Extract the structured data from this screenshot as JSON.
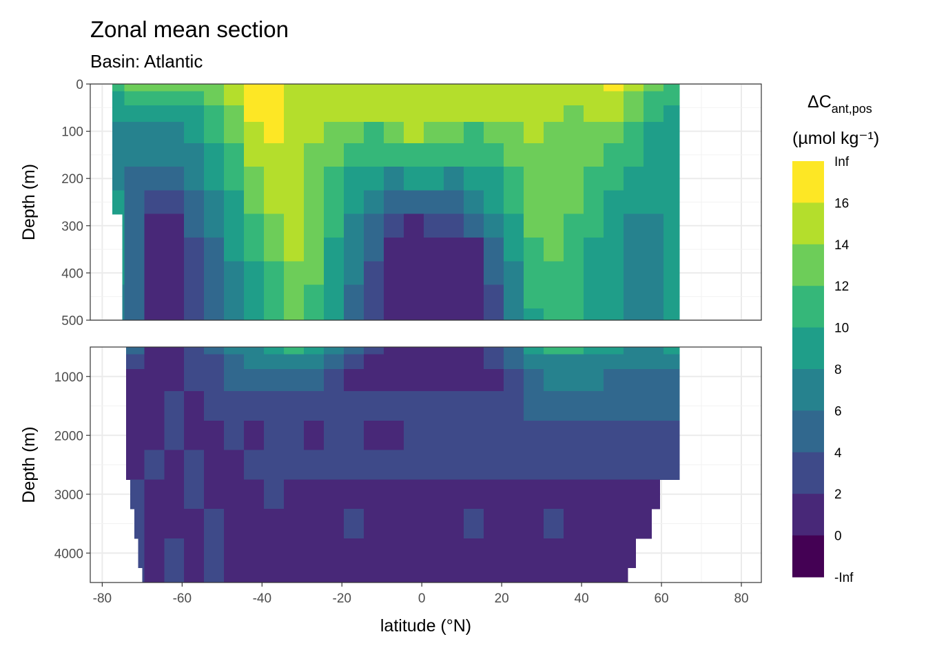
{
  "title": "Zonal mean section",
  "subtitle": "Basin: Atlantic",
  "chart_data": {
    "type": "heatmap",
    "title": "Zonal mean section",
    "subtitle": "Basin: Atlantic",
    "xlabel": "latitude (°N)",
    "ylabel": "Depth (m)",
    "xlim": [
      -83,
      85
    ],
    "x_ticks": [
      -80,
      -60,
      -40,
      -20,
      0,
      20,
      40,
      60,
      80
    ],
    "x_tick_labels": [
      "-80",
      "-60",
      "-40",
      "-20",
      "0",
      "20",
      "40",
      "60",
      "80"
    ],
    "data_lat_range": [
      -77.5,
      64.5
    ],
    "panels": [
      {
        "name": "upper",
        "ylim": [
          0,
          500
        ],
        "y_ticks": [
          0,
          100,
          200,
          300,
          400,
          500
        ],
        "y_tick_labels": [
          "0",
          "100",
          "200",
          "300",
          "400",
          "500"
        ],
        "x": [
          -77,
          -72,
          -67,
          -62,
          -57,
          -52,
          -47,
          -42,
          -37,
          -32,
          -27,
          -22,
          -17,
          -12,
          -7,
          -2,
          3,
          8,
          13,
          18,
          23,
          28,
          33,
          38,
          43,
          48,
          53,
          58,
          63
        ],
        "depth": [
          0,
          30,
          60,
          100,
          150,
          200,
          250,
          300,
          350,
          400,
          450,
          500
        ],
        "values": [
          [
            10,
            12,
            13,
            13,
            12,
            13,
            15,
            17,
            17,
            15,
            15,
            15,
            15,
            15,
            15,
            15,
            15,
            15,
            15,
            15,
            15,
            15,
            15,
            15,
            15,
            17,
            14,
            12,
            11
          ],
          [
            9,
            11,
            11,
            11,
            11,
            12,
            14,
            17,
            17,
            15,
            15,
            15,
            15,
            15,
            15,
            15,
            15,
            15,
            15,
            15,
            15,
            15,
            14,
            14,
            15,
            15,
            13,
            11,
            10
          ],
          [
            8,
            9,
            9,
            9,
            9,
            11,
            13,
            16,
            17,
            15,
            14,
            15,
            15,
            15,
            15,
            15,
            15,
            15,
            15,
            14,
            14,
            14,
            14,
            13,
            14,
            14,
            12,
            10,
            9
          ],
          [
            7,
            7,
            7,
            7,
            8,
            10,
            12,
            15,
            16,
            15,
            14,
            13,
            12,
            11,
            13,
            14,
            13,
            12,
            11,
            12,
            13,
            14,
            13,
            13,
            13,
            12,
            11,
            9,
            9
          ],
          [
            7,
            6,
            6,
            6,
            7,
            9,
            11,
            14,
            15,
            15,
            13,
            12,
            11,
            10,
            10,
            11,
            10,
            10,
            10,
            11,
            12,
            13,
            13,
            13,
            12,
            11,
            10,
            9,
            9
          ],
          [
            7,
            5,
            4,
            4,
            6,
            8,
            10,
            13,
            15,
            15,
            13,
            11,
            9,
            8,
            7,
            8,
            8,
            7,
            8,
            9,
            11,
            13,
            13,
            12,
            11,
            10,
            9,
            8,
            9
          ],
          [
            8,
            5,
            3,
            3,
            5,
            7,
            9,
            12,
            14,
            15,
            13,
            10,
            8,
            6,
            5,
            5,
            5,
            5,
            6,
            8,
            10,
            12,
            13,
            12,
            10,
            9,
            8,
            8,
            9
          ],
          [
            8,
            5,
            1,
            1,
            4,
            6,
            8,
            11,
            13,
            14,
            12,
            10,
            7,
            5,
            3,
            1,
            3,
            3,
            4,
            6,
            9,
            12,
            12,
            11,
            10,
            8,
            7,
            7,
            8
          ],
          [
            8,
            5,
            1,
            1,
            3,
            5,
            8,
            10,
            12,
            14,
            12,
            9,
            6,
            4,
            1,
            1,
            1,
            1,
            1,
            5,
            8,
            11,
            12,
            11,
            9,
            8,
            7,
            7,
            8
          ],
          [
            8,
            4,
            1,
            1,
            3,
            5,
            7,
            9,
            11,
            13,
            12,
            9,
            6,
            3,
            1,
            1,
            1,
            1,
            1,
            4,
            7,
            10,
            11,
            10,
            9,
            8,
            7,
            7,
            8
          ],
          [
            7,
            4,
            1,
            1,
            3,
            5,
            7,
            9,
            11,
            12,
            11,
            9,
            5,
            3,
            1,
            1,
            1,
            1,
            1,
            3,
            6,
            10,
            11,
            10,
            9,
            8,
            7,
            7,
            8
          ],
          [
            7,
            4,
            1,
            1,
            3,
            4,
            6,
            8,
            10,
            12,
            11,
            8,
            5,
            3,
            1,
            1,
            1,
            1,
            1,
            2,
            6,
            9,
            11,
            10,
            9,
            8,
            7,
            7,
            8
          ]
        ]
      },
      {
        "name": "lower",
        "ylim": [
          500,
          4500
        ],
        "y_ticks": [
          1000,
          2000,
          3000,
          4000
        ],
        "y_tick_labels": [
          "1000",
          "2000",
          "3000",
          "4000"
        ],
        "x": [
          -77,
          -72,
          -67,
          -62,
          -57,
          -52,
          -47,
          -42,
          -37,
          -32,
          -27,
          -22,
          -17,
          -12,
          -7,
          -2,
          3,
          8,
          13,
          18,
          23,
          28,
          33,
          38,
          43,
          48,
          53,
          58,
          63
        ],
        "depth": [
          500,
          750,
          1000,
          1500,
          2000,
          2500,
          3000,
          3500,
          4000,
          4500
        ],
        "values": [
          [
            7,
            4,
            1,
            1,
            3,
            4,
            6,
            7,
            9,
            10,
            9,
            7,
            5,
            3,
            1,
            1,
            1,
            1,
            1,
            2,
            5,
            8,
            10,
            10,
            9,
            8,
            7,
            7,
            8
          ],
          [
            5,
            2,
            1,
            1,
            3,
            3,
            5,
            6,
            7,
            7,
            6,
            5,
            3,
            1,
            1,
            1,
            1,
            1,
            1,
            2,
            4,
            6,
            7,
            7,
            7,
            6,
            6,
            6,
            6
          ],
          [
            3,
            1,
            1,
            1,
            3,
            3,
            4,
            5,
            5,
            5,
            5,
            3,
            1,
            1,
            1,
            1,
            1,
            1,
            1,
            1,
            3,
            5,
            6,
            6,
            6,
            5,
            5,
            5,
            5
          ],
          [
            2,
            1,
            1,
            3,
            1,
            3,
            3,
            3,
            3,
            3,
            3,
            3,
            3,
            3,
            3,
            3,
            3,
            3,
            3,
            3,
            3,
            4,
            5,
            5,
            5,
            5,
            5,
            5,
            5
          ],
          [
            2,
            1,
            1,
            3,
            1,
            1,
            3,
            1,
            3,
            3,
            1,
            3,
            3,
            1,
            1,
            3,
            3,
            3,
            3,
            3,
            3,
            3,
            3,
            3,
            3,
            3,
            3,
            3,
            3
          ],
          [
            2,
            1,
            3,
            1,
            3,
            1,
            1,
            3,
            3,
            3,
            3,
            3,
            3,
            3,
            3,
            3,
            3,
            3,
            3,
            3,
            3,
            3,
            3,
            3,
            3,
            3,
            3,
            3,
            3
          ],
          [
            2,
            3,
            1,
            1,
            3,
            1,
            1,
            1,
            3,
            1,
            1,
            1,
            1,
            1,
            1,
            1,
            1,
            1,
            1,
            1,
            1,
            1,
            1,
            1,
            1,
            1,
            1,
            1,
            1
          ],
          [
            1,
            3,
            1,
            1,
            1,
            3,
            1,
            1,
            1,
            1,
            1,
            1,
            3,
            1,
            1,
            1,
            1,
            1,
            3,
            1,
            1,
            1,
            3,
            1,
            1,
            1,
            1,
            1,
            1
          ],
          [
            1,
            3,
            1,
            3,
            1,
            3,
            1,
            1,
            1,
            1,
            1,
            1,
            1,
            1,
            1,
            1,
            1,
            1,
            1,
            1,
            1,
            1,
            1,
            1,
            1,
            1,
            1,
            1,
            1
          ],
          [
            1,
            3,
            1,
            3,
            1,
            3,
            1,
            1,
            1,
            1,
            1,
            1,
            1,
            1,
            1,
            1,
            1,
            1,
            1,
            1,
            1,
            1,
            1,
            1,
            1,
            1,
            1,
            1,
            1
          ]
        ]
      }
    ],
    "bottom_edge_lat": [
      [
        500,
        -74
      ],
      [
        1000,
        -74
      ],
      [
        1500,
        -74
      ],
      [
        2500,
        -74
      ],
      [
        3000,
        -73
      ],
      [
        3500,
        -72
      ],
      [
        4000,
        -71
      ],
      [
        4500,
        -70
      ]
    ],
    "north_edge_lat": [
      [
        500,
        64.5
      ],
      [
        2000,
        64.5
      ],
      [
        2500,
        64.5
      ],
      [
        2600,
        61.5
      ],
      [
        3000,
        59.5
      ],
      [
        3500,
        57.5
      ],
      [
        4000,
        53.5
      ],
      [
        4500,
        51.5
      ]
    ],
    "legend": {
      "title_main": "ΔC",
      "title_sub": "ant,pos",
      "title_unit": "(µmol kg⁻¹)",
      "breaks": [
        "Inf",
        "16",
        "14",
        "12",
        "10",
        "8",
        "6",
        "4",
        "2",
        "0",
        "-Inf"
      ],
      "colors": [
        "#FDE725",
        "#B4DE2C",
        "#6DCD59",
        "#35B779",
        "#1F9E89",
        "#26828E",
        "#31688E",
        "#3E4A89",
        "#482878",
        "#440154"
      ]
    },
    "grid": true
  }
}
